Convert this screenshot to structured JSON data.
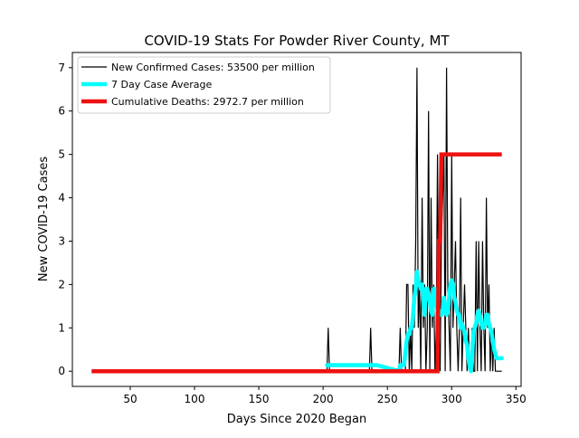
{
  "chart_data": {
    "type": "line",
    "title": "COVID-19 Stats For Powder River County, MT",
    "xlabel": "Days Since 2020 Began",
    "ylabel": "New COVID-19 Cases",
    "xlim": [
      5,
      354
    ],
    "ylim": [
      -0.35,
      7.35
    ],
    "xticks": [
      50,
      100,
      150,
      200,
      250,
      300,
      350
    ],
    "yticks": [
      0,
      1,
      2,
      3,
      4,
      5,
      6,
      7
    ],
    "legend_position": "top-left",
    "colors": {
      "cases": "#000000",
      "avg": "#00ffff",
      "deaths": "#ee1111"
    },
    "series": [
      {
        "name": "New Confirmed Cases: 53500 per million",
        "key": "cases",
        "x": [
          20,
          203,
          204,
          205,
          206,
          236,
          237,
          238,
          259,
          260,
          261,
          264,
          265,
          266,
          267,
          268,
          269,
          270,
          271,
          272,
          273,
          274,
          275,
          276,
          277,
          278,
          279,
          280,
          281,
          282,
          283,
          284,
          285,
          286,
          287,
          288,
          289,
          290,
          291,
          292,
          293,
          294,
          295,
          296,
          297,
          298,
          299,
          300,
          301,
          302,
          303,
          304,
          305,
          306,
          307,
          308,
          309,
          310,
          311,
          312,
          313,
          314,
          315,
          316,
          317,
          318,
          319,
          320,
          321,
          322,
          323,
          324,
          325,
          326,
          327,
          328,
          329,
          330,
          331,
          332,
          333,
          334,
          335,
          336,
          337,
          338,
          339
        ],
        "y": [
          0,
          0,
          1,
          0,
          0,
          0,
          1,
          0,
          0,
          1,
          0,
          0,
          2,
          2,
          0,
          1,
          0,
          2,
          1,
          3,
          7,
          1,
          2,
          0,
          4,
          1,
          2,
          0,
          1,
          6,
          0,
          4,
          1,
          2,
          0,
          1,
          5,
          1,
          0,
          3,
          4,
          5,
          0,
          7,
          2,
          1,
          0,
          5,
          1,
          2,
          3,
          1,
          0,
          1,
          4,
          0,
          1,
          2,
          1,
          0,
          1,
          0,
          0,
          1,
          0,
          0,
          3,
          0,
          3,
          1,
          0,
          3,
          1,
          0,
          4,
          1,
          2,
          0,
          1,
          0,
          1,
          0,
          0,
          0,
          0,
          0,
          0
        ]
      },
      {
        "name": "7 Day Case Average",
        "key": "avg",
        "x": [
          203,
          204,
          205,
          206,
          207,
          208,
          209,
          210,
          236,
          237,
          238,
          239,
          240,
          241,
          242,
          259,
          260,
          261,
          262,
          263,
          264,
          265,
          266,
          267,
          268,
          269,
          270,
          271,
          272,
          273,
          274,
          275,
          276,
          277,
          278,
          279,
          280,
          281,
          282,
          283,
          284,
          285,
          286,
          287,
          288,
          289,
          290,
          291,
          292,
          293,
          294,
          295,
          296,
          297,
          298,
          299,
          300,
          301,
          302,
          303,
          304,
          305,
          306,
          307,
          308,
          309,
          310,
          311,
          312,
          313,
          314,
          315,
          316,
          317,
          318,
          319,
          320,
          321,
          322,
          323,
          324,
          325,
          326,
          327,
          328,
          329,
          330,
          331,
          332,
          333,
          334,
          335,
          336,
          337,
          338,
          339
        ],
        "y": [
          0.14,
          0.14,
          0.14,
          0.14,
          0.14,
          0.14,
          0.14,
          0.14,
          0.14,
          0.14,
          0.14,
          0.14,
          0.14,
          0.14,
          0.14,
          0,
          0.14,
          0.14,
          0.14,
          0.14,
          0.43,
          0.71,
          0.86,
          0.86,
          1.0,
          1.0,
          1.3,
          1.7,
          1.9,
          2.3,
          2.1,
          2.0,
          1.9,
          2.0,
          1.6,
          1.3,
          1.9,
          1.9,
          1.8,
          1.6,
          1.4,
          1.3,
          1.9,
          1.9,
          1.6,
          1.4,
          1.4,
          1.3,
          1.3,
          1.4,
          1.7,
          1.4,
          1.3,
          1.4,
          1.7,
          2.0,
          2.1,
          2.0,
          1.7,
          1.6,
          1.4,
          1.3,
          1.3,
          1.0,
          1.1,
          1.0,
          0.9,
          0.7,
          0.6,
          0.3,
          0.1,
          0.0,
          0.4,
          0.9,
          1.0,
          1.1,
          1.3,
          1.4,
          1.3,
          1.1,
          1.0,
          1.0,
          1.1,
          1.3,
          1.3,
          1.1,
          1.0,
          0.9,
          0.7,
          0.5,
          0.4,
          0.3,
          0.3,
          0.3,
          0.3,
          0.3
        ]
      },
      {
        "name": "Cumulative Deaths: 2972.7 per million",
        "key": "deaths",
        "x": [
          20,
          289,
          290,
          291,
          292,
          293,
          339
        ],
        "y": [
          0,
          0,
          3,
          3,
          5,
          5,
          5
        ]
      }
    ]
  }
}
